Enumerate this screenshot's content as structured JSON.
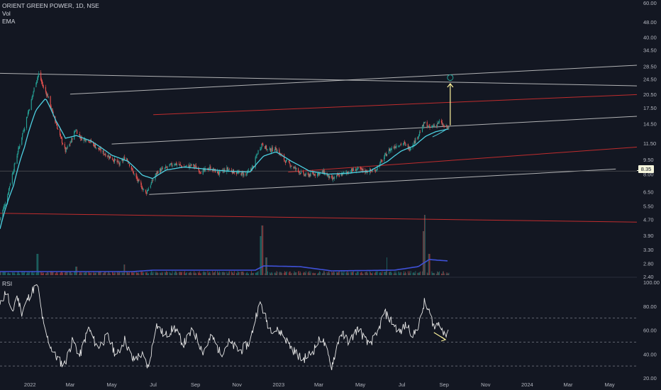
{
  "legend": {
    "symbol": "ORIENT GREEN POWER, 1D, NSE",
    "vol": "Vol",
    "ema": "EMA",
    "rsi": "RSI"
  },
  "last_price_label": "8.35",
  "colors": {
    "background": "#131722",
    "up": "#26a69a",
    "down": "#ef5350",
    "ema": "#4dd0e1",
    "vol_ma": "#3f51d8",
    "rsi": "#e6e6e6",
    "trend_white": "#d9d9d9",
    "trend_red": "#d32f2f",
    "arrow": "#fff59d",
    "axis_text": "#b2b5be"
  },
  "chart_data": [
    {
      "type": "candlestick",
      "title": "ORIENT GREEN POWER, 1D, NSE",
      "y_scale": "log",
      "ylim": [
        2.4,
        60
      ],
      "xlim": [
        "2021-11-18",
        "2024-06-10"
      ],
      "y_ticks": [
        "60.00",
        "48.00",
        "40.00",
        "34.50",
        "28.50",
        "24.50",
        "20.50",
        "17.50",
        "14.50",
        "11.50",
        "9.50",
        "8.00",
        "6.50",
        "5.50",
        "4.70",
        "3.90",
        "3.30",
        "2.80",
        "2.40"
      ],
      "x_ticks": [
        {
          "date": "2022-01-01",
          "label": "2022"
        },
        {
          "date": "2022-03-01",
          "label": "Mar"
        },
        {
          "date": "2022-05-01",
          "label": "May"
        },
        {
          "date": "2022-07-01",
          "label": "Jul"
        },
        {
          "date": "2022-09-01",
          "label": "Sep"
        },
        {
          "date": "2022-11-01",
          "label": "Nov"
        },
        {
          "date": "2023-01-01",
          "label": "2023"
        },
        {
          "date": "2023-03-01",
          "label": "Mar"
        },
        {
          "date": "2023-05-01",
          "label": "May"
        },
        {
          "date": "2023-07-01",
          "label": "Jul"
        },
        {
          "date": "2023-09-01",
          "label": "Sep"
        },
        {
          "date": "2023-11-01",
          "label": "Nov"
        },
        {
          "date": "2024-01-01",
          "label": "2024"
        },
        {
          "date": "2024-03-01",
          "label": "Mar"
        },
        {
          "date": "2024-05-01",
          "label": "May"
        }
      ],
      "price_anchors": [
        [
          "2021-11-18",
          4.7
        ],
        [
          "2021-11-28",
          6.0
        ],
        [
          "2021-12-08",
          8.5
        ],
        [
          "2021-12-16",
          11.0
        ],
        [
          "2021-12-24",
          14.0
        ],
        [
          "2022-01-03",
          19.0
        ],
        [
          "2022-01-10",
          24.0
        ],
        [
          "2022-01-14",
          26.0
        ],
        [
          "2022-01-20",
          22.5
        ],
        [
          "2022-01-27",
          20.0
        ],
        [
          "2022-02-04",
          16.0
        ],
        [
          "2022-02-14",
          12.5
        ],
        [
          "2022-02-22",
          10.5
        ],
        [
          "2022-03-01",
          11.5
        ],
        [
          "2022-03-09",
          13.5
        ],
        [
          "2022-03-17",
          12.2
        ],
        [
          "2022-03-28",
          12.0
        ],
        [
          "2022-04-08",
          11.0
        ],
        [
          "2022-04-20",
          10.2
        ],
        [
          "2022-05-02",
          9.6
        ],
        [
          "2022-05-12",
          9.0
        ],
        [
          "2022-05-22",
          9.8
        ],
        [
          "2022-06-01",
          8.2
        ],
        [
          "2022-06-10",
          7.2
        ],
        [
          "2022-06-20",
          6.4
        ],
        [
          "2022-06-28",
          7.2
        ],
        [
          "2022-07-08",
          8.3
        ],
        [
          "2022-07-20",
          8.6
        ],
        [
          "2022-08-01",
          9.1
        ],
        [
          "2022-08-15",
          8.7
        ],
        [
          "2022-08-28",
          8.9
        ],
        [
          "2022-09-10",
          8.2
        ],
        [
          "2022-09-22",
          8.6
        ],
        [
          "2022-10-05",
          8.1
        ],
        [
          "2022-10-18",
          8.5
        ],
        [
          "2022-11-01",
          8.1
        ],
        [
          "2022-11-15",
          8.0
        ],
        [
          "2022-11-25",
          8.8
        ],
        [
          "2022-12-02",
          10.5
        ],
        [
          "2022-12-08",
          11.5
        ],
        [
          "2022-12-16",
          10.6
        ],
        [
          "2022-12-28",
          10.8
        ],
        [
          "2023-01-10",
          9.4
        ],
        [
          "2023-01-24",
          8.6
        ],
        [
          "2023-02-08",
          7.9
        ],
        [
          "2023-02-22",
          8.0
        ],
        [
          "2023-03-08",
          8.2
        ],
        [
          "2023-03-20",
          7.5
        ],
        [
          "2023-03-30",
          7.9
        ],
        [
          "2023-04-12",
          8.2
        ],
        [
          "2023-04-25",
          8.5
        ],
        [
          "2023-05-08",
          8.3
        ],
        [
          "2023-05-22",
          8.3
        ],
        [
          "2023-06-02",
          9.4
        ],
        [
          "2023-06-12",
          10.6
        ],
        [
          "2023-06-22",
          11.2
        ],
        [
          "2023-07-03",
          11.5
        ],
        [
          "2023-07-12",
          10.8
        ],
        [
          "2023-07-20",
          11.8
        ],
        [
          "2023-07-28",
          13.2
        ],
        [
          "2023-08-03",
          14.6
        ],
        [
          "2023-08-10",
          13.8
        ],
        [
          "2023-08-18",
          14.2
        ],
        [
          "2023-08-25",
          14.8
        ],
        [
          "2023-09-01",
          14.0
        ],
        [
          "2023-09-07",
          13.8
        ]
      ],
      "ema_anchors": [
        [
          "2021-11-18",
          4.2
        ],
        [
          "2021-12-08",
          7.0
        ],
        [
          "2021-12-24",
          11.0
        ],
        [
          "2022-01-10",
          17.0
        ],
        [
          "2022-01-24",
          19.5
        ],
        [
          "2022-02-08",
          15.0
        ],
        [
          "2022-02-22",
          12.2
        ],
        [
          "2022-03-10",
          12.6
        ],
        [
          "2022-04-01",
          11.8
        ],
        [
          "2022-05-01",
          10.0
        ],
        [
          "2022-05-25",
          9.3
        ],
        [
          "2022-06-15",
          7.9
        ],
        [
          "2022-06-30",
          7.6
        ],
        [
          "2022-07-20",
          8.4
        ],
        [
          "2022-08-15",
          8.7
        ],
        [
          "2022-09-15",
          8.5
        ],
        [
          "2022-10-15",
          8.3
        ],
        [
          "2022-11-20",
          8.2
        ],
        [
          "2022-12-10",
          9.9
        ],
        [
          "2022-12-28",
          10.4
        ],
        [
          "2023-01-20",
          9.3
        ],
        [
          "2023-02-15",
          8.3
        ],
        [
          "2023-03-15",
          8.0
        ],
        [
          "2023-04-15",
          8.1
        ],
        [
          "2023-05-15",
          8.3
        ],
        [
          "2023-06-10",
          9.3
        ],
        [
          "2023-06-30",
          10.5
        ],
        [
          "2023-07-20",
          11.2
        ],
        [
          "2023-08-05",
          12.5
        ],
        [
          "2023-08-20",
          13.2
        ],
        [
          "2023-09-07",
          13.6
        ]
      ],
      "volume_spikes": [
        [
          "2022-01-12",
          0.3
        ],
        [
          "2022-03-10",
          0.12
        ],
        [
          "2022-05-20",
          0.15
        ],
        [
          "2022-12-05",
          0.55
        ],
        [
          "2022-12-08",
          0.7
        ],
        [
          "2022-12-14",
          0.25
        ],
        [
          "2023-06-10",
          0.25
        ],
        [
          "2023-08-02",
          0.62
        ],
        [
          "2023-08-04",
          0.85
        ],
        [
          "2023-08-10",
          0.3
        ]
      ],
      "volume_ma_anchors": [
        [
          "2021-11-18",
          0.05
        ],
        [
          "2022-06-01",
          0.05
        ],
        [
          "2022-07-01",
          0.07
        ],
        [
          "2022-11-28",
          0.07
        ],
        [
          "2022-12-10",
          0.13
        ],
        [
          "2023-02-01",
          0.12
        ],
        [
          "2023-03-20",
          0.06
        ],
        [
          "2023-06-20",
          0.07
        ],
        [
          "2023-07-25",
          0.12
        ],
        [
          "2023-08-10",
          0.22
        ],
        [
          "2023-09-07",
          0.2
        ]
      ],
      "trendlines": [
        {
          "color": "white",
          "from": [
            "2021-11-18",
            26.2
          ],
          "to": [
            "2024-06-10",
            22.6
          ]
        },
        {
          "color": "white",
          "from": [
            "2022-03-01",
            20.5
          ],
          "to": [
            "2024-06-10",
            28.8
          ]
        },
        {
          "color": "white",
          "from": [
            "2022-05-01",
            11.4
          ],
          "to": [
            "2024-06-10",
            15.8
          ]
        },
        {
          "color": "white",
          "from": [
            "2022-06-25",
            6.3
          ],
          "to": [
            "2024-05-10",
            8.5
          ]
        },
        {
          "color": "gray",
          "from": [
            "2021-11-18",
            8.3
          ],
          "to": [
            "2024-06-10",
            8.3
          ]
        },
        {
          "color": "red",
          "from": [
            "2022-07-01",
            16.1
          ],
          "to": [
            "2024-06-10",
            20.4
          ]
        },
        {
          "color": "red",
          "from": [
            "2023-01-15",
            8.2
          ],
          "to": [
            "2024-06-10",
            11.0
          ]
        },
        {
          "color": "red",
          "from": [
            "2021-11-18",
            5.05
          ],
          "to": [
            "2024-06-10",
            4.55
          ]
        }
      ],
      "projection": {
        "from": [
          "2023-09-10",
          14.2
        ],
        "to": [
          "2023-09-10",
          23.2
        ],
        "target": [
          "2023-09-10",
          24.9
        ]
      },
      "last_price": 8.35
    },
    {
      "type": "line",
      "title": "RSI",
      "ylim": [
        20,
        100
      ],
      "y_ticks": [
        "100.00",
        "80.00",
        "60.00",
        "40.00",
        "20.00"
      ],
      "levels": [
        70,
        50,
        30
      ],
      "rsi_anchors": [
        [
          "2021-11-18",
          80
        ],
        [
          "2021-11-28",
          95
        ],
        [
          "2021-12-05",
          70
        ],
        [
          "2021-12-12",
          90
        ],
        [
          "2021-12-20",
          75
        ],
        [
          "2022-01-03",
          92
        ],
        [
          "2022-01-12",
          98
        ],
        [
          "2022-01-22",
          60
        ],
        [
          "2022-02-05",
          40
        ],
        [
          "2022-02-20",
          30
        ],
        [
          "2022-03-05",
          52
        ],
        [
          "2022-03-15",
          38
        ],
        [
          "2022-03-28",
          62
        ],
        [
          "2022-04-10",
          45
        ],
        [
          "2022-04-25",
          55
        ],
        [
          "2022-05-08",
          38
        ],
        [
          "2022-05-20",
          52
        ],
        [
          "2022-06-01",
          35
        ],
        [
          "2022-06-14",
          40
        ],
        [
          "2022-06-24",
          28
        ],
        [
          "2022-07-05",
          65
        ],
        [
          "2022-07-18",
          55
        ],
        [
          "2022-08-01",
          62
        ],
        [
          "2022-08-14",
          48
        ],
        [
          "2022-08-28",
          60
        ],
        [
          "2022-09-12",
          42
        ],
        [
          "2022-09-25",
          55
        ],
        [
          "2022-10-08",
          40
        ],
        [
          "2022-10-20",
          50
        ],
        [
          "2022-11-05",
          42
        ],
        [
          "2022-11-20",
          50
        ],
        [
          "2022-11-30",
          75
        ],
        [
          "2022-12-06",
          82
        ],
        [
          "2022-12-18",
          62
        ],
        [
          "2023-01-05",
          58
        ],
        [
          "2023-01-20",
          45
        ],
        [
          "2023-02-05",
          35
        ],
        [
          "2023-02-20",
          42
        ],
        [
          "2023-03-05",
          55
        ],
        [
          "2023-03-20",
          30
        ],
        [
          "2023-04-02",
          58
        ],
        [
          "2023-04-15",
          50
        ],
        [
          "2023-04-28",
          62
        ],
        [
          "2023-05-12",
          48
        ],
        [
          "2023-05-25",
          55
        ],
        [
          "2023-06-05",
          75
        ],
        [
          "2023-06-15",
          68
        ],
        [
          "2023-06-28",
          58
        ],
        [
          "2023-07-08",
          65
        ],
        [
          "2023-07-18",
          55
        ],
        [
          "2023-07-28",
          68
        ],
        [
          "2023-08-03",
          83
        ],
        [
          "2023-08-10",
          75
        ],
        [
          "2023-08-18",
          62
        ],
        [
          "2023-08-26",
          68
        ],
        [
          "2023-09-01",
          55
        ],
        [
          "2023-09-07",
          60
        ]
      ],
      "divergence_arrow": {
        "from": [
          "2023-08-17",
          58
        ],
        "to": [
          "2023-09-03",
          52
        ]
      }
    }
  ]
}
